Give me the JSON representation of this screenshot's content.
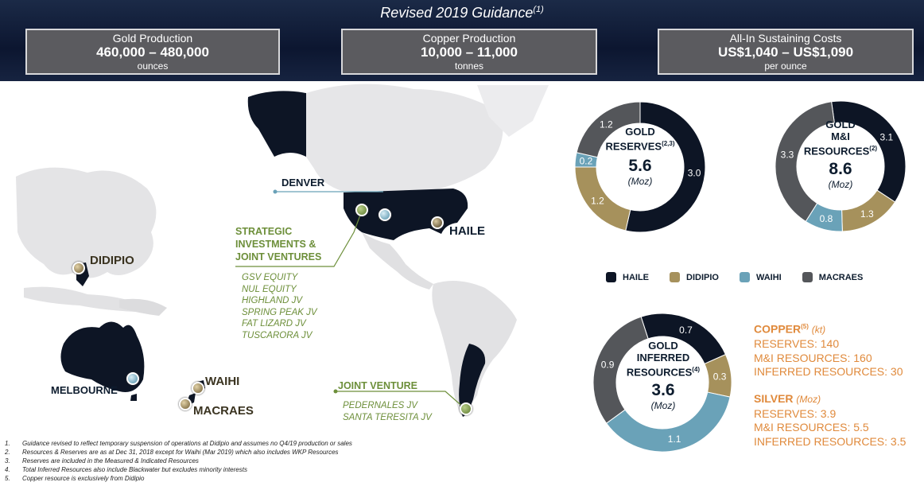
{
  "header": {
    "title": "Revised 2019 Guidance",
    "title_note": "(1)",
    "boxes": [
      {
        "label": "Gold Production",
        "value": "460,000 – 480,000",
        "unit": "ounces"
      },
      {
        "label": "Copper Production",
        "value": "10,000 – 11,000",
        "unit": "tonnes"
      },
      {
        "label": "All-In Sustaining Costs",
        "value": "US$1,040 – US$1,090",
        "unit": "per ounce"
      }
    ]
  },
  "map": {
    "denver": "DENVER",
    "haile": "HAILE",
    "didipio": "DIDIPIO",
    "melbourne": "MELBOURNE",
    "waihi": "WAIHI",
    "macraes": "MACRAES",
    "strategic_title": [
      "STRATEGIC",
      "INVESTMENTS &",
      "JOINT VENTURES"
    ],
    "strategic_items": [
      "GSV EQUITY",
      "NUL EQUITY",
      "HIGHLAND JV",
      "SPRING PEAK JV",
      "FAT LIZARD JV",
      "TUSCARORA JV"
    ],
    "jv_title": "JOINT VENTURE",
    "jv_items": [
      "PEDERNALES JV",
      "SANTA TERESITA JV"
    ]
  },
  "colors": {
    "haile": "#0d1525",
    "didipio": "#a6915c",
    "waihi": "#6aa2b8",
    "macraes": "#54565a"
  },
  "chart_data": [
    {
      "type": "pie",
      "title_lines": [
        "GOLD",
        "RESERVES"
      ],
      "title_note": "(2,3)",
      "total": "5.6",
      "unit": "(Moz)",
      "labels": [
        "HAILE",
        "DIDIPIO",
        "WAIHI",
        "MACRAES"
      ],
      "values": [
        3.0,
        1.2,
        0.2,
        1.2
      ],
      "value_labels": [
        "3.0",
        "1.2",
        "0.2",
        "1.2"
      ]
    },
    {
      "type": "pie",
      "title_lines": [
        "GOLD",
        "M&I",
        "RESOURCES"
      ],
      "title_note": "(2)",
      "total": "8.6",
      "unit": "(Moz)",
      "labels": [
        "HAILE",
        "DIDIPIO",
        "WAIHI",
        "MACRAES"
      ],
      "values": [
        3.1,
        1.3,
        0.8,
        3.3
      ],
      "value_labels": [
        "3.1",
        "1.3",
        "0.8",
        "3.3"
      ]
    },
    {
      "type": "pie",
      "title_lines": [
        "GOLD",
        "INFERRED",
        "RESOURCES"
      ],
      "title_note": "(4)",
      "total": "3.6",
      "unit": "(Moz)",
      "labels": [
        "HAILE",
        "DIDIPIO",
        "WAIHI",
        "MACRAES"
      ],
      "values": [
        0.7,
        0.3,
        1.1,
        0.9
      ],
      "value_labels": [
        "0.7",
        "0.3",
        "1.1",
        "0.9"
      ]
    }
  ],
  "legend": [
    "HAILE",
    "DIDIPIO",
    "WAIHI",
    "MACRAES"
  ],
  "copper": {
    "title": "COPPER",
    "note": "(5)",
    "unit": "(kt)",
    "lines": [
      "RESERVES: 140",
      "M&I RESOURCES: 160",
      "INFERRED RESOURCES: 30"
    ]
  },
  "silver": {
    "title": "SILVER",
    "unit": "(Moz)",
    "lines": [
      "RESERVES: 3.9",
      "M&I RESOURCES: 5.5",
      "INFERRED RESOURCES: 3.5"
    ]
  },
  "footnotes": [
    {
      "n": "1.",
      "t": "Guidance revised to reflect temporary suspension of operations at Didipio and assumes no Q4/19 production or sales"
    },
    {
      "n": "2.",
      "t": "Resources & Reserves are as at Dec 31, 2018 except for Waihi (Mar 2019) which also includes WKP Resources"
    },
    {
      "n": "3.",
      "t": "Reserves are included in the Measured & Indicated Resources"
    },
    {
      "n": "4.",
      "t": "Total Inferred Resources also include Blackwater but excludes minority interests"
    },
    {
      "n": "5.",
      "t": "Copper resource is exclusively from Didipio"
    }
  ]
}
